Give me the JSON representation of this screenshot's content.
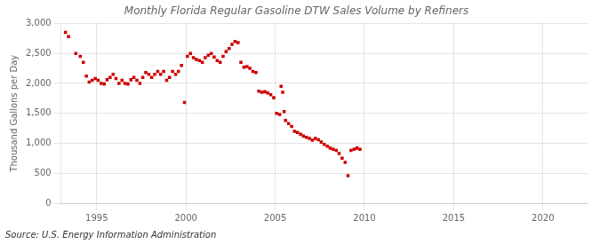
{
  "chart_data": {
    "type": "scatter",
    "title": "Monthly Florida Regular Gasoline DTW Sales Volume by Refiners",
    "ylabel": "Thousand Gallons per Day",
    "annotation": "Source: U.S. Energy Information Administration",
    "color": "#cc0000",
    "marker": "square",
    "grid": true,
    "xlim": [
      1993.0,
      2022.5
    ],
    "ylim": [
      0,
      3000
    ],
    "xticks": [
      1995,
      2000,
      2005,
      2010,
      2015,
      2020
    ],
    "yticks": [
      0,
      500,
      {
        "value": 1000,
        "label": "1,000"
      },
      {
        "value": 1500,
        "label": "1,500"
      },
      {
        "value": 2000,
        "label": "2,000"
      },
      {
        "value": 2500,
        "label": "2,500"
      },
      {
        "value": 3000,
        "label": "3,000"
      }
    ],
    "x": [
      1993.25,
      1993.42,
      1993.83,
      1994.08,
      1994.25,
      1994.42,
      1994.58,
      1994.75,
      1994.92,
      1995.08,
      1995.25,
      1995.42,
      1995.58,
      1995.75,
      1995.92,
      1996.08,
      1996.25,
      1996.42,
      1996.58,
      1996.75,
      1996.92,
      1997.08,
      1997.25,
      1997.42,
      1997.58,
      1997.75,
      1997.92,
      1998.08,
      1998.25,
      1998.42,
      1998.58,
      1998.75,
      1998.92,
      1999.08,
      1999.25,
      1999.42,
      1999.58,
      1999.75,
      1999.92,
      2000.08,
      2000.25,
      2000.42,
      2000.58,
      2000.75,
      2000.92,
      2001.08,
      2001.25,
      2001.42,
      2001.58,
      2001.75,
      2001.92,
      2002.08,
      2002.25,
      2002.42,
      2002.58,
      2002.75,
      2002.92,
      2003.08,
      2003.25,
      2003.42,
      2003.58,
      2003.75,
      2003.92,
      2004.08,
      2004.25,
      2004.42,
      2004.58,
      2004.75,
      2004.92,
      2005.08,
      2005.25,
      2005.33,
      2005.42,
      2005.5,
      2005.58,
      2005.75,
      2005.92,
      2006.08,
      2006.25,
      2006.42,
      2006.58,
      2006.75,
      2006.92,
      2007.08,
      2007.25,
      2007.42,
      2007.58,
      2007.75,
      2007.92,
      2008.08,
      2008.25,
      2008.42,
      2008.58,
      2008.75,
      2008.92,
      2009.08,
      2009.25,
      2009.42,
      2009.58,
      2009.75
    ],
    "values": [
      2850,
      2780,
      2500,
      2450,
      2350,
      2120,
      2020,
      2050,
      2080,
      2050,
      2000,
      1990,
      2060,
      2100,
      2150,
      2080,
      2000,
      2050,
      2000,
      1990,
      2060,
      2100,
      2050,
      2000,
      2100,
      2180,
      2150,
      2100,
      2150,
      2200,
      2150,
      2200,
      2050,
      2100,
      2200,
      2150,
      2200,
      2300,
      1680,
      2450,
      2500,
      2430,
      2400,
      2380,
      2350,
      2430,
      2470,
      2500,
      2440,
      2380,
      2350,
      2450,
      2530,
      2580,
      2650,
      2700,
      2680,
      2350,
      2270,
      2280,
      2250,
      2200,
      2180,
      1870,
      1850,
      1860,
      1840,
      1810,
      1760,
      1500,
      1480,
      1950,
      1850,
      1530,
      1380,
      1330,
      1280,
      1200,
      1180,
      1150,
      1120,
      1100,
      1080,
      1050,
      1080,
      1060,
      1020,
      980,
      950,
      920,
      900,
      880,
      830,
      750,
      680,
      460,
      880,
      900,
      920,
      900
    ]
  }
}
